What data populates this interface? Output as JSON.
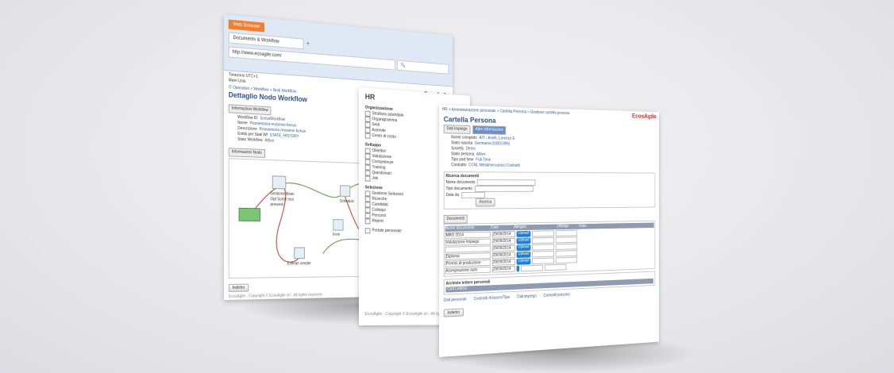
{
  "browser": {
    "app_label": "Web Browser",
    "tab_title": "Documents & Workflow",
    "url": "http://www.ecoagile.com/",
    "timezone": "Timezone UTC+1",
    "toolbar_text": "Main Lista",
    "logo": "EcosAgile",
    "breadcrumb": "IT Operation > Workflow > Nodi Workflow",
    "page_title": "Dettaglio Nodo Workflow",
    "info_tab": "Informazioni Workflow",
    "fields": [
      {
        "label": "Workflow ID",
        "value": "ScrivaWorkflow"
      },
      {
        "label": "Nome",
        "value": "Promemoria revisione bonus"
      },
      {
        "label": "Descrizione",
        "value": "Promemoria revisione bonus"
      },
      {
        "label": "Entità per Stati Wf",
        "value": "STATE_HISTORY"
      },
      {
        "label": "Stato Workflow",
        "value": "Attivo"
      }
    ],
    "node_tab": "Informazioni Nodo",
    "nodes": [
      {
        "label": "Gestione Bean Opt Sortie non presenti"
      },
      {
        "label": "Schedule"
      },
      {
        "label": "Invio"
      },
      {
        "label": "E-Bean sender"
      }
    ],
    "back_button": "Indietro",
    "footer": "EcosAgile - Copyright © EcosAgile srl - All rights reserved"
  },
  "hr": {
    "title": "HR",
    "sections": [
      {
        "name": "Organizzazione",
        "items": [
          "Struttura aziendale",
          "Organigramma",
          "Sedi",
          "Aziende",
          "Centri di costo"
        ]
      },
      {
        "name": "Sviluppo",
        "items": [
          "Obiettivi",
          "Valutazione",
          "Competenze",
          "Training",
          "Questionari",
          "Job"
        ]
      },
      {
        "name": "Selezione",
        "items": [
          "Gestione Selezioni",
          "Ricerche",
          "Candidati",
          "Colloqui",
          "Percorsi",
          "Report"
        ]
      },
      {
        "name": "",
        "items": [
          "Portale personale"
        ]
      }
    ],
    "footer": "EcosAgile - Copyright © EcosAgile srl - All rights reserved"
  },
  "persona": {
    "breadcrumb": "HR > Amministrazione personale > Cartella Persona > Gestione cartella persona",
    "logo": "EcosAgile",
    "page_title": "Cartella Persona",
    "tabs": [
      "Dati impiego",
      "Altre informazioni"
    ],
    "fields": [
      {
        "label": "Nome completo",
        "value": "AIT - Anelli, Lorenzo E"
      },
      {
        "label": "Stato nascita",
        "value": "Germania (03001995)"
      },
      {
        "label": "Società",
        "value": "Demo"
      },
      {
        "label": "Stato persona",
        "value": "Attivo"
      },
      {
        "label": "Tipo part time",
        "value": "Full-Time"
      },
      {
        "label": "Contratto",
        "value": "CCNL Metalmeccanico Contratti"
      }
    ],
    "search_box": {
      "title": "Ricerca documenti",
      "labels": [
        "Nome documento",
        "Tipo documento",
        "Data da"
      ],
      "button": "Ricerca"
    },
    "documents": {
      "tab": "Documenti",
      "headers": [
        "Nome documento",
        "Data",
        "Allegato",
        "Obbligo",
        "Stato"
      ],
      "rows": [
        {
          "name": "MBO 2014",
          "date": "29/09/2014",
          "upload": "Upload"
        },
        {
          "name": "Valutazione Impiego",
          "date": "29/09/2014",
          "upload": "Upload"
        },
        {
          "name": "",
          "date": "29/09/2014",
          "upload": "Upload"
        },
        {
          "name": "Diploma",
          "date": "29/09/2014",
          "upload": "Upload"
        },
        {
          "name": "Premio di produzione",
          "date": "29/09/2014",
          "upload": "Upload"
        },
        {
          "name": "Assegnazione auto",
          "date": "29/09/2014",
          "upload": ""
        }
      ]
    },
    "archive": {
      "title": "Archivio lettere personali",
      "col": "Cod Lettera"
    },
    "links": [
      "Dati personali",
      "Contratti di lavoro/Tipo",
      "Dati impiego",
      "Contratti persona"
    ],
    "back_button": "Indietro"
  },
  "colors": {
    "accent": "#f08030",
    "brand_red": "#d03030",
    "blue": "#1e7fd0"
  }
}
